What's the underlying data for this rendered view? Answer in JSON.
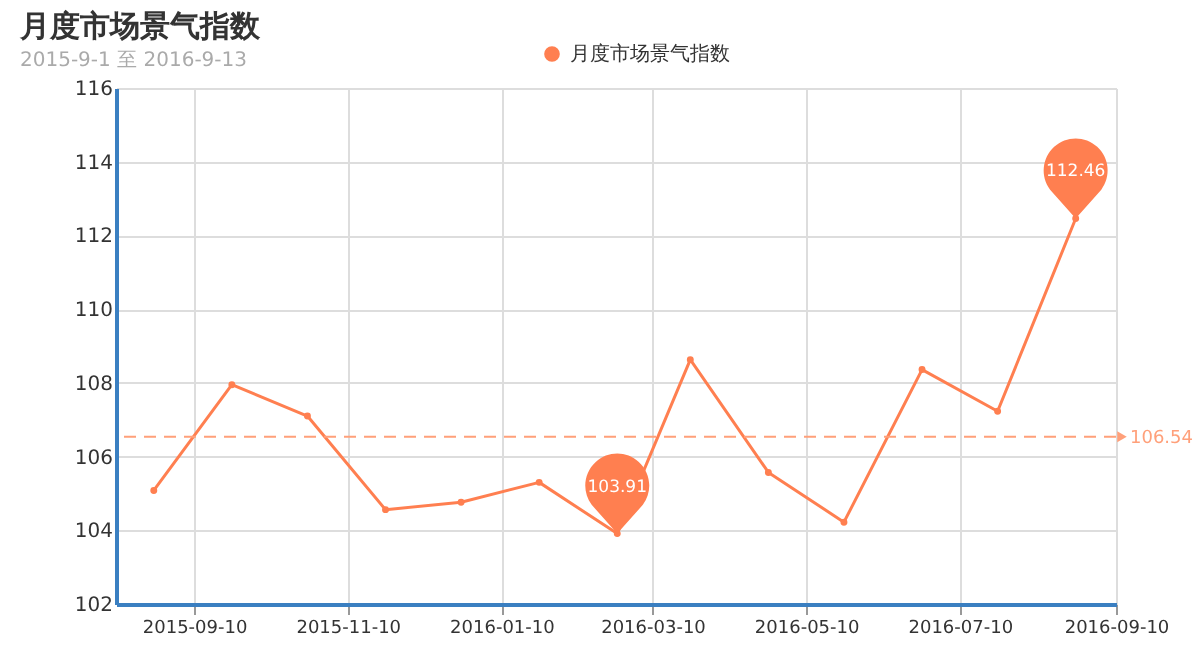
{
  "chart_data": {
    "type": "line",
    "title": "月度市场景气指数",
    "subtitle": "2015-9-1 至 2016-9-13",
    "x": [
      "2015-08-25",
      "2015-09-25",
      "2015-10-25",
      "2015-11-25",
      "2015-12-25",
      "2016-01-25",
      "2016-02-25",
      "2016-03-25",
      "2016-04-25",
      "2016-05-25",
      "2016-06-25",
      "2016-07-25",
      "2016-08-25"
    ],
    "series": [
      {
        "name": "月度市场景气指数",
        "color": "#ff7f50",
        "values": [
          105.08,
          107.95,
          107.1,
          104.56,
          104.76,
          105.3,
          103.91,
          108.63,
          105.57,
          104.22,
          108.36,
          107.23,
          112.46
        ]
      }
    ],
    "xlim": [
      "2015-08-10",
      "2016-09-10"
    ],
    "xticks": [
      "2015-09-10",
      "2015-11-10",
      "2016-01-10",
      "2016-03-10",
      "2016-05-10",
      "2016-07-10",
      "2016-09-10"
    ],
    "ylim": [
      102,
      116
    ],
    "yticks": [
      102,
      104,
      106,
      108,
      110,
      112,
      114,
      116
    ],
    "ref_lines": [
      {
        "axis": "y",
        "value": 106.54,
        "label": "106.54",
        "color": "#ffa07a",
        "line_style": "dashed"
      }
    ],
    "annotations": [
      {
        "text": "103.91",
        "x": "2016-02-25",
        "y": 103.91
      },
      {
        "text": "112.46",
        "x": "2016-08-25",
        "y": 112.46
      }
    ],
    "grid": true,
    "legend": "top",
    "marker": "circle",
    "line_style": "solid"
  }
}
